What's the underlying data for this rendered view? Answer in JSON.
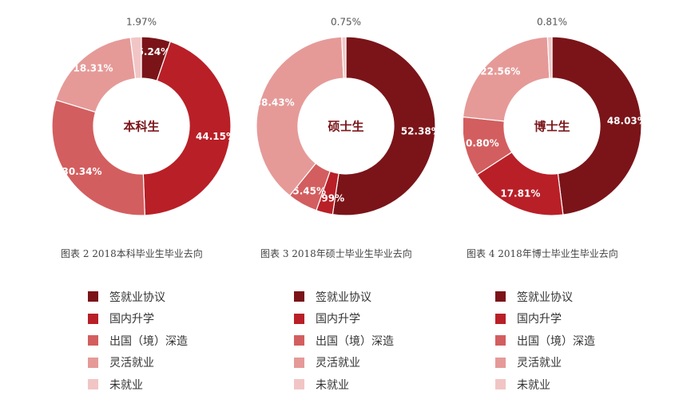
{
  "colors": {
    "签就业协议": "#7a1419",
    "国内升学": "#b91f27",
    "出国（境）深造": "#d35e5f",
    "灵活就业": "#e59a98",
    "未就业": "#f2c5c5"
  },
  "legend_labels": [
    "签就业协议",
    "国内升学",
    "出国（境）深造",
    "灵活就业",
    "未就业"
  ],
  "chart_data": [
    {
      "type": "pie",
      "center_label": "本科生",
      "caption": "图表 2  2018本科毕业生毕业去向",
      "slices": [
        {
          "category": "签就业协议",
          "value": 5.24,
          "label": "5.24%"
        },
        {
          "category": "国内升学",
          "value": 44.15,
          "label": "44.15%"
        },
        {
          "category": "出国（境）深造",
          "value": 30.34,
          "label": "30.34%"
        },
        {
          "category": "灵活就业",
          "value": 18.31,
          "label": "18.31%"
        },
        {
          "category": "未就业",
          "value": 1.97,
          "label": "1.97%"
        }
      ]
    },
    {
      "type": "pie",
      "center_label": "硕士生",
      "caption": "图表 3  2018年硕士毕业生毕业去向",
      "slices": [
        {
          "category": "签就业协议",
          "value": 52.38,
          "label": "52.38%"
        },
        {
          "category": "国内升学",
          "value": 2.99,
          "label": "2.99%"
        },
        {
          "category": "出国（境）深造",
          "value": 5.45,
          "label": "5.45%"
        },
        {
          "category": "灵活就业",
          "value": 38.43,
          "label": "38.43%"
        },
        {
          "category": "未就业",
          "value": 0.75,
          "label": "0.75%"
        }
      ]
    },
    {
      "type": "pie",
      "center_label": "博士生",
      "caption": "图表 4  2018年博士毕业生毕业去向",
      "slices": [
        {
          "category": "签就业协议",
          "value": 48.03,
          "label": "48.03%"
        },
        {
          "category": "国内升学",
          "value": 17.81,
          "label": "17.81%"
        },
        {
          "category": "出国（境）深造",
          "value": 10.8,
          "label": "10.80%"
        },
        {
          "category": "灵活就业",
          "value": 22.56,
          "label": "22.56%"
        },
        {
          "category": "未就业",
          "value": 0.81,
          "label": "0.81%"
        }
      ]
    }
  ]
}
